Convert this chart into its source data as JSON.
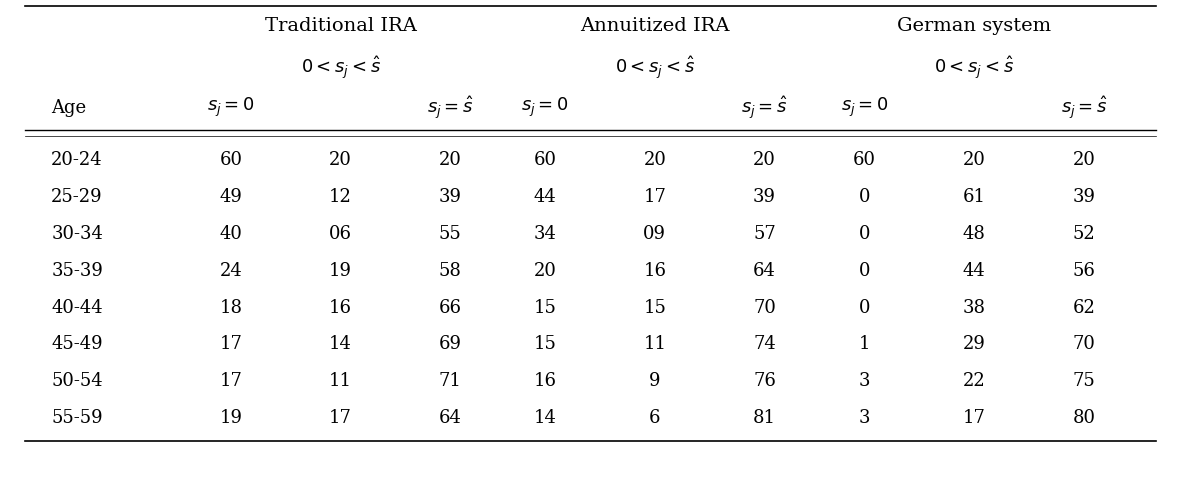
{
  "ages": [
    "20-24",
    "25-29",
    "30-34",
    "35-39",
    "40-44",
    "45-49",
    "50-54",
    "55-59"
  ],
  "traditional_ira": [
    [
      "60",
      "20",
      "20"
    ],
    [
      "49",
      "12",
      "39"
    ],
    [
      "40",
      "06",
      "55"
    ],
    [
      "24",
      "19",
      "58"
    ],
    [
      "18",
      "16",
      "66"
    ],
    [
      "17",
      "14",
      "69"
    ],
    [
      "17",
      "11",
      "71"
    ],
    [
      "19",
      "17",
      "64"
    ]
  ],
  "annuitized_ira": [
    [
      "60",
      "20",
      "20"
    ],
    [
      "44",
      "17",
      "39"
    ],
    [
      "34",
      "09",
      "57"
    ],
    [
      "20",
      "16",
      "64"
    ],
    [
      "15",
      "15",
      "70"
    ],
    [
      "15",
      "11",
      "74"
    ],
    [
      "16",
      "9",
      "76"
    ],
    [
      "14",
      "6",
      "81"
    ]
  ],
  "german_system": [
    [
      "60",
      "20",
      "20"
    ],
    [
      "0",
      "61",
      "39"
    ],
    [
      "0",
      "48",
      "52"
    ],
    [
      "0",
      "44",
      "56"
    ],
    [
      "0",
      "38",
      "62"
    ],
    [
      "1",
      "29",
      "70"
    ],
    [
      "3",
      "22",
      "75"
    ],
    [
      "3",
      "17",
      "80"
    ]
  ],
  "header1": [
    "Traditional IRA",
    "Annuitized IRA",
    "German system"
  ],
  "header2_math": "$0 < s_j < \\hat{s}$",
  "header3_sj0": "$s_j = 0$",
  "header3_sjeqs": "$s_j = \\hat{s}$",
  "age_label": "Age",
  "bg_color": "#ffffff",
  "text_color": "#000000"
}
